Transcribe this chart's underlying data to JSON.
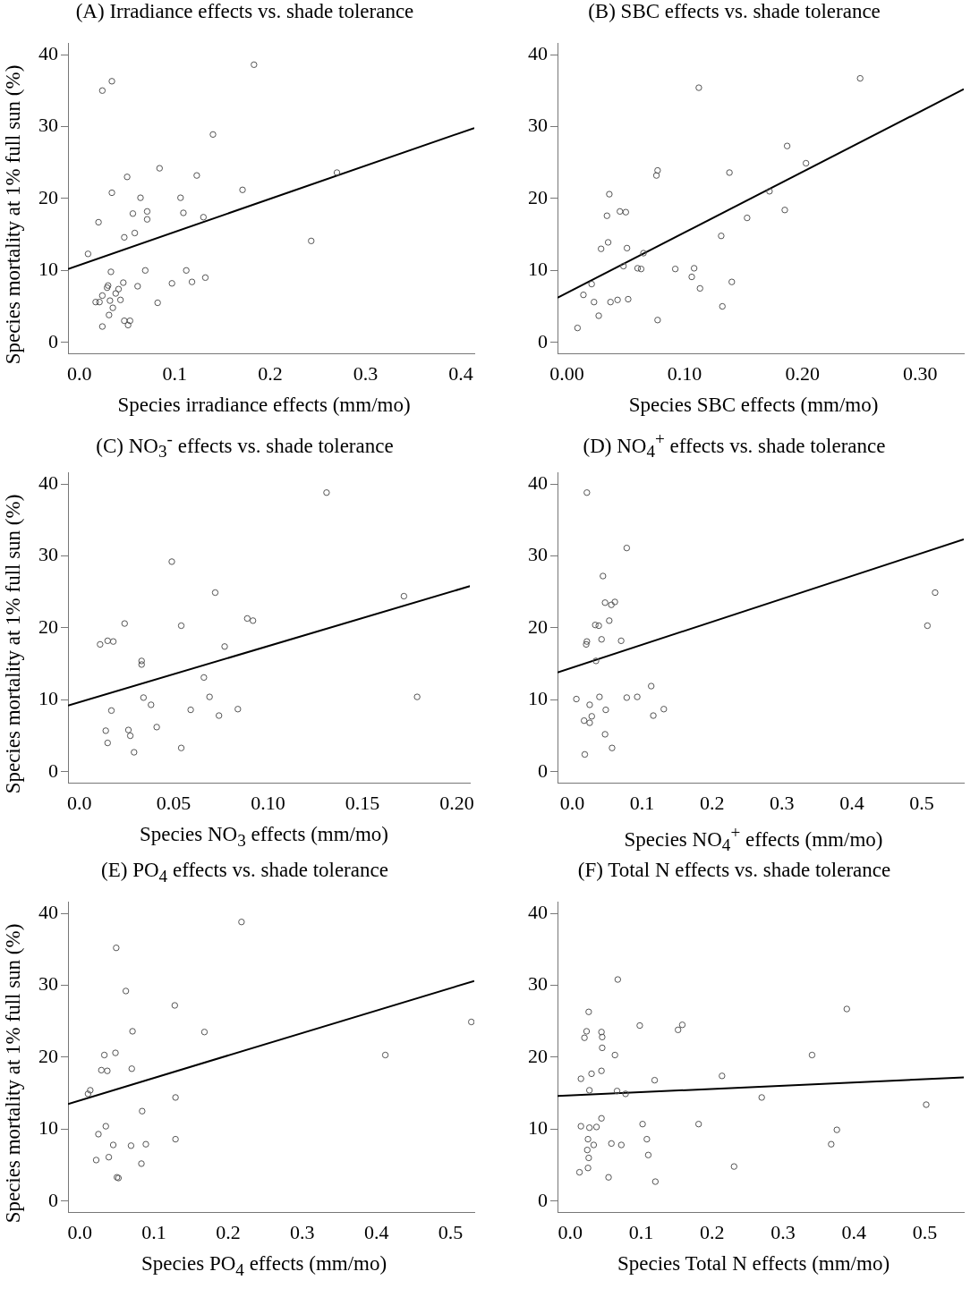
{
  "chart_data": [
    {
      "type": "scatter",
      "title": "(A) Irradiance effects vs. shade tolerance",
      "xlabel": "Species irradiance effects (mm/mo)",
      "ylabel": "Species mortality at 1% full sun (%)",
      "xlim": [
        -0.012,
        0.414
      ],
      "ylim": [
        -1.6,
        41.6
      ],
      "xticks": [
        {
          "value": 0,
          "label": "0.0"
        },
        {
          "value": 0.1,
          "label": "0.1"
        },
        {
          "value": 0.2,
          "label": "0.2"
        },
        {
          "value": 0.3,
          "label": "0.3"
        },
        {
          "value": 0.4,
          "label": "0.4"
        }
      ],
      "yticks": [
        0,
        10,
        20,
        30,
        40
      ],
      "series": [
        {
          "type": "scatter",
          "marker": "circle",
          "color": "#555555",
          "x": [
            0.183,
            0.034,
            0.024,
            0.14,
            0.084,
            0.123,
            0.05,
            0.27,
            0.034,
            0.171,
            0.064,
            0.106,
            0.056,
            0.071,
            0.109,
            0.071,
            0.13,
            0.02,
            0.058,
            0.047,
            0.243,
            0.009,
            0.033,
            0.069,
            0.112,
            0.118,
            0.132,
            0.097,
            0.061,
            0.046,
            0.041,
            0.03,
            0.029,
            0.038,
            0.043,
            0.032,
            0.024,
            0.017,
            0.021,
            0.082,
            0.035,
            0.031,
            0.047,
            0.053,
            0.024,
            0.051
          ],
          "values": [
            38.6,
            36.3,
            35.0,
            28.9,
            24.2,
            23.2,
            23.0,
            23.6,
            20.8,
            21.2,
            20.1,
            20.1,
            17.9,
            18.2,
            18.0,
            17.1,
            17.4,
            16.7,
            15.2,
            14.6,
            14.1,
            12.3,
            9.8,
            10.0,
            10.0,
            8.4,
            9.0,
            8.2,
            7.8,
            8.3,
            7.4,
            7.9,
            7.6,
            6.8,
            5.9,
            5.8,
            6.5,
            5.6,
            5.6,
            5.5,
            4.8,
            3.8,
            3.0,
            3.0,
            2.2,
            2.4
          ]
        },
        {
          "type": "line",
          "marker": "none",
          "color": "#000000",
          "x": [
            -0.012,
            0.414
          ],
          "values": [
            10.2,
            29.8
          ]
        }
      ]
    },
    {
      "type": "scatter",
      "title": "(B) SBC effects vs. shade tolerance",
      "xlabel": "Species SBC effects (mm/mo)",
      "xlim": [
        -0.008,
        0.337
      ],
      "ylim": [
        -1.6,
        41.6
      ],
      "xticks": [
        {
          "value": 0,
          "label": "0.00"
        },
        {
          "value": 0.1,
          "label": "0.10"
        },
        {
          "value": 0.2,
          "label": "0.20"
        },
        {
          "value": 0.3,
          "label": "0.30"
        }
      ],
      "yticks": [
        0,
        10,
        20,
        30,
        40
      ],
      "series": [
        {
          "type": "scatter",
          "marker": "circle",
          "color": "#555555",
          "x": [
            0.249,
            0.112,
            0.187,
            0.203,
            0.077,
            0.076,
            0.138,
            0.036,
            0.172,
            0.045,
            0.05,
            0.034,
            0.185,
            0.153,
            0.131,
            0.035,
            0.029,
            0.051,
            0.065,
            0.048,
            0.06,
            0.063,
            0.092,
            0.108,
            0.106,
            0.14,
            0.113,
            0.021,
            0.014,
            0.023,
            0.037,
            0.043,
            0.052,
            0.132,
            0.027,
            0.077,
            0.009
          ],
          "values": [
            36.7,
            35.4,
            27.3,
            24.9,
            23.9,
            23.2,
            23.6,
            20.6,
            21.0,
            18.2,
            18.1,
            17.6,
            18.4,
            17.3,
            14.8,
            13.9,
            13.0,
            13.1,
            12.4,
            10.6,
            10.3,
            10.2,
            10.2,
            10.3,
            9.1,
            8.4,
            7.5,
            8.1,
            6.6,
            5.6,
            5.6,
            5.9,
            6.0,
            5.0,
            3.7,
            3.1,
            2.0
          ]
        },
        {
          "type": "line",
          "marker": "none",
          "color": "#000000",
          "x": [
            -0.008,
            0.337
          ],
          "values": [
            6.2,
            35.2
          ]
        }
      ]
    },
    {
      "type": "scatter",
      "title": "(C) NO$_{3}$$^{-}$ effects vs. shade tolerance",
      "xlabel": "Species NO$_{3}$ effects (mm/mo)",
      "ylabel": "Species mortality at 1% full sun (%)",
      "xlim": [
        -0.006,
        0.207
      ],
      "ylim": [
        -1.6,
        41.6
      ],
      "xticks": [
        {
          "value": 0,
          "label": "0.0"
        },
        {
          "value": 0.05,
          "label": "0.05"
        },
        {
          "value": 0.1,
          "label": "0.10"
        },
        {
          "value": 0.15,
          "label": "0.15"
        },
        {
          "value": 0.2,
          "label": "0.20"
        }
      ],
      "yticks": [
        0,
        10,
        20,
        30,
        40
      ],
      "series": [
        {
          "type": "scatter",
          "marker": "circle",
          "color": "#555555",
          "x": [
            0.131,
            0.049,
            0.072,
            0.172,
            0.024,
            0.054,
            0.089,
            0.092,
            0.011,
            0.015,
            0.018,
            0.077,
            0.033,
            0.033,
            0.066,
            0.034,
            0.069,
            0.179,
            0.038,
            0.017,
            0.059,
            0.084,
            0.074,
            0.041,
            0.014,
            0.026,
            0.027,
            0.015,
            0.054,
            0.029
          ],
          "values": [
            38.8,
            29.2,
            24.9,
            24.4,
            20.6,
            20.3,
            21.3,
            21.0,
            17.7,
            18.2,
            18.1,
            17.4,
            15.4,
            14.9,
            13.1,
            10.3,
            10.4,
            10.4,
            9.3,
            8.5,
            8.6,
            8.7,
            7.8,
            6.2,
            5.7,
            5.8,
            5.0,
            4.0,
            3.3,
            2.7
          ]
        },
        {
          "type": "line",
          "marker": "none",
          "color": "#000000",
          "x": [
            -0.006,
            0.207
          ],
          "values": [
            9.2,
            25.8
          ]
        }
      ]
    },
    {
      "type": "scatter",
      "title": "(D) NO$_{4}$$^{+}$ effects vs. shade tolerance",
      "xlabel": "Species NO$_{4}$$^{+}$ effects (mm/mo)",
      "xlim": [
        -0.021,
        0.56
      ],
      "ylim": [
        -1.6,
        41.6
      ],
      "xticks": [
        {
          "value": 0,
          "label": "0.0"
        },
        {
          "value": 0.1,
          "label": "0.1"
        },
        {
          "value": 0.2,
          "label": "0.2"
        },
        {
          "value": 0.3,
          "label": "0.3"
        },
        {
          "value": 0.4,
          "label": "0.4"
        },
        {
          "value": 0.5,
          "label": "0.5"
        }
      ],
      "yticks": [
        0,
        10,
        20,
        30,
        40
      ],
      "series": [
        {
          "type": "scatter",
          "marker": "circle",
          "color": "#555555",
          "x": [
            0.021,
            0.078,
            0.044,
            0.047,
            0.056,
            0.061,
            0.519,
            0.053,
            0.033,
            0.038,
            0.508,
            0.042,
            0.07,
            0.021,
            0.02,
            0.034,
            0.113,
            0.006,
            0.039,
            0.078,
            0.093,
            0.025,
            0.048,
            0.131,
            0.116,
            0.028,
            0.017,
            0.025,
            0.047,
            0.057,
            0.018
          ],
          "values": [
            38.8,
            31.1,
            27.2,
            23.5,
            23.2,
            23.6,
            24.9,
            21.0,
            20.4,
            20.3,
            20.3,
            18.4,
            18.2,
            18.1,
            17.7,
            15.4,
            11.9,
            10.1,
            10.4,
            10.3,
            10.4,
            9.3,
            8.6,
            8.7,
            7.8,
            7.7,
            7.1,
            6.8,
            5.2,
            3.3,
            2.4
          ]
        },
        {
          "type": "line",
          "marker": "none",
          "color": "#000000",
          "x": [
            -0.021,
            0.56
          ],
          "values": [
            13.8,
            32.3
          ]
        }
      ]
    },
    {
      "type": "scatter",
      "title": "(E) PO$_{4}$ effects vs. shade tolerance",
      "xlabel": "Species PO$_{4}$ effects (mm/mo)",
      "ylabel": "Species mortality at 1% full sun (%)",
      "xlim": [
        -0.016,
        0.532
      ],
      "ylim": [
        -1.6,
        41.6
      ],
      "xticks": [
        {
          "value": 0,
          "label": "0.0"
        },
        {
          "value": 0.1,
          "label": "0.1"
        },
        {
          "value": 0.2,
          "label": "0.2"
        },
        {
          "value": 0.3,
          "label": "0.3"
        },
        {
          "value": 0.4,
          "label": "0.4"
        },
        {
          "value": 0.5,
          "label": "0.5"
        }
      ],
      "yticks": [
        0,
        10,
        20,
        30,
        40
      ],
      "series": [
        {
          "type": "scatter",
          "marker": "circle",
          "color": "#555555",
          "x": [
            0.218,
            0.049,
            0.062,
            0.128,
            0.071,
            0.168,
            0.528,
            0.033,
            0.048,
            0.412,
            0.029,
            0.037,
            0.07,
            0.014,
            0.011,
            0.129,
            0.084,
            0.035,
            0.025,
            0.045,
            0.069,
            0.089,
            0.129,
            0.022,
            0.039,
            0.083,
            0.05,
            0.052
          ],
          "values": [
            38.8,
            35.2,
            29.2,
            27.2,
            23.6,
            23.5,
            24.9,
            20.3,
            20.6,
            20.3,
            18.2,
            18.1,
            18.4,
            15.4,
            14.9,
            14.4,
            12.5,
            10.4,
            9.3,
            7.8,
            7.7,
            7.9,
            8.6,
            5.7,
            6.1,
            5.2,
            3.3,
            3.2
          ]
        },
        {
          "type": "line",
          "marker": "none",
          "color": "#000000",
          "x": [
            -0.016,
            0.532
          ],
          "values": [
            13.5,
            30.6
          ]
        }
      ]
    },
    {
      "type": "scatter",
      "title": "(F) Total N effects vs. shade tolerance",
      "xlabel": "Species Total N effects (mm/mo)",
      "xlim": [
        -0.018,
        0.555
      ],
      "ylim": [
        -1.6,
        41.6
      ],
      "xticks": [
        {
          "value": 0,
          "label": "0.0"
        },
        {
          "value": 0.1,
          "label": "0.1"
        },
        {
          "value": 0.2,
          "label": "0.2"
        },
        {
          "value": 0.3,
          "label": "0.3"
        },
        {
          "value": 0.4,
          "label": "0.4"
        },
        {
          "value": 0.5,
          "label": "0.5"
        }
      ],
      "yticks": [
        0,
        10,
        20,
        30,
        40
      ],
      "series": [
        {
          "type": "scatter",
          "marker": "circle",
          "color": "#555555",
          "x": [
            0.067,
            0.026,
            0.39,
            0.023,
            0.02,
            0.044,
            0.045,
            0.045,
            0.098,
            0.152,
            0.158,
            0.063,
            0.341,
            0.015,
            0.03,
            0.044,
            0.119,
            0.214,
            0.027,
            0.066,
            0.078,
            0.27,
            0.502,
            0.044,
            0.015,
            0.027,
            0.037,
            0.102,
            0.181,
            0.376,
            0.025,
            0.033,
            0.058,
            0.072,
            0.108,
            0.368,
            0.024,
            0.026,
            0.11,
            0.025,
            0.013,
            0.231,
            0.054,
            0.12
          ],
          "values": [
            30.8,
            26.3,
            26.7,
            23.6,
            22.7,
            23.5,
            22.8,
            21.3,
            24.4,
            23.8,
            24.5,
            20.3,
            20.3,
            17.0,
            17.7,
            18.1,
            16.8,
            17.4,
            15.4,
            15.3,
            14.9,
            14.4,
            13.4,
            11.5,
            10.4,
            10.2,
            10.3,
            10.7,
            10.7,
            9.9,
            8.6,
            7.8,
            8.0,
            7.8,
            8.6,
            7.9,
            7.1,
            6.0,
            6.4,
            4.6,
            4.0,
            4.8,
            3.3,
            2.7
          ]
        },
        {
          "type": "line",
          "marker": "none",
          "color": "#000000",
          "x": [
            -0.018,
            0.555
          ],
          "values": [
            14.6,
            17.2
          ]
        }
      ]
    }
  ]
}
